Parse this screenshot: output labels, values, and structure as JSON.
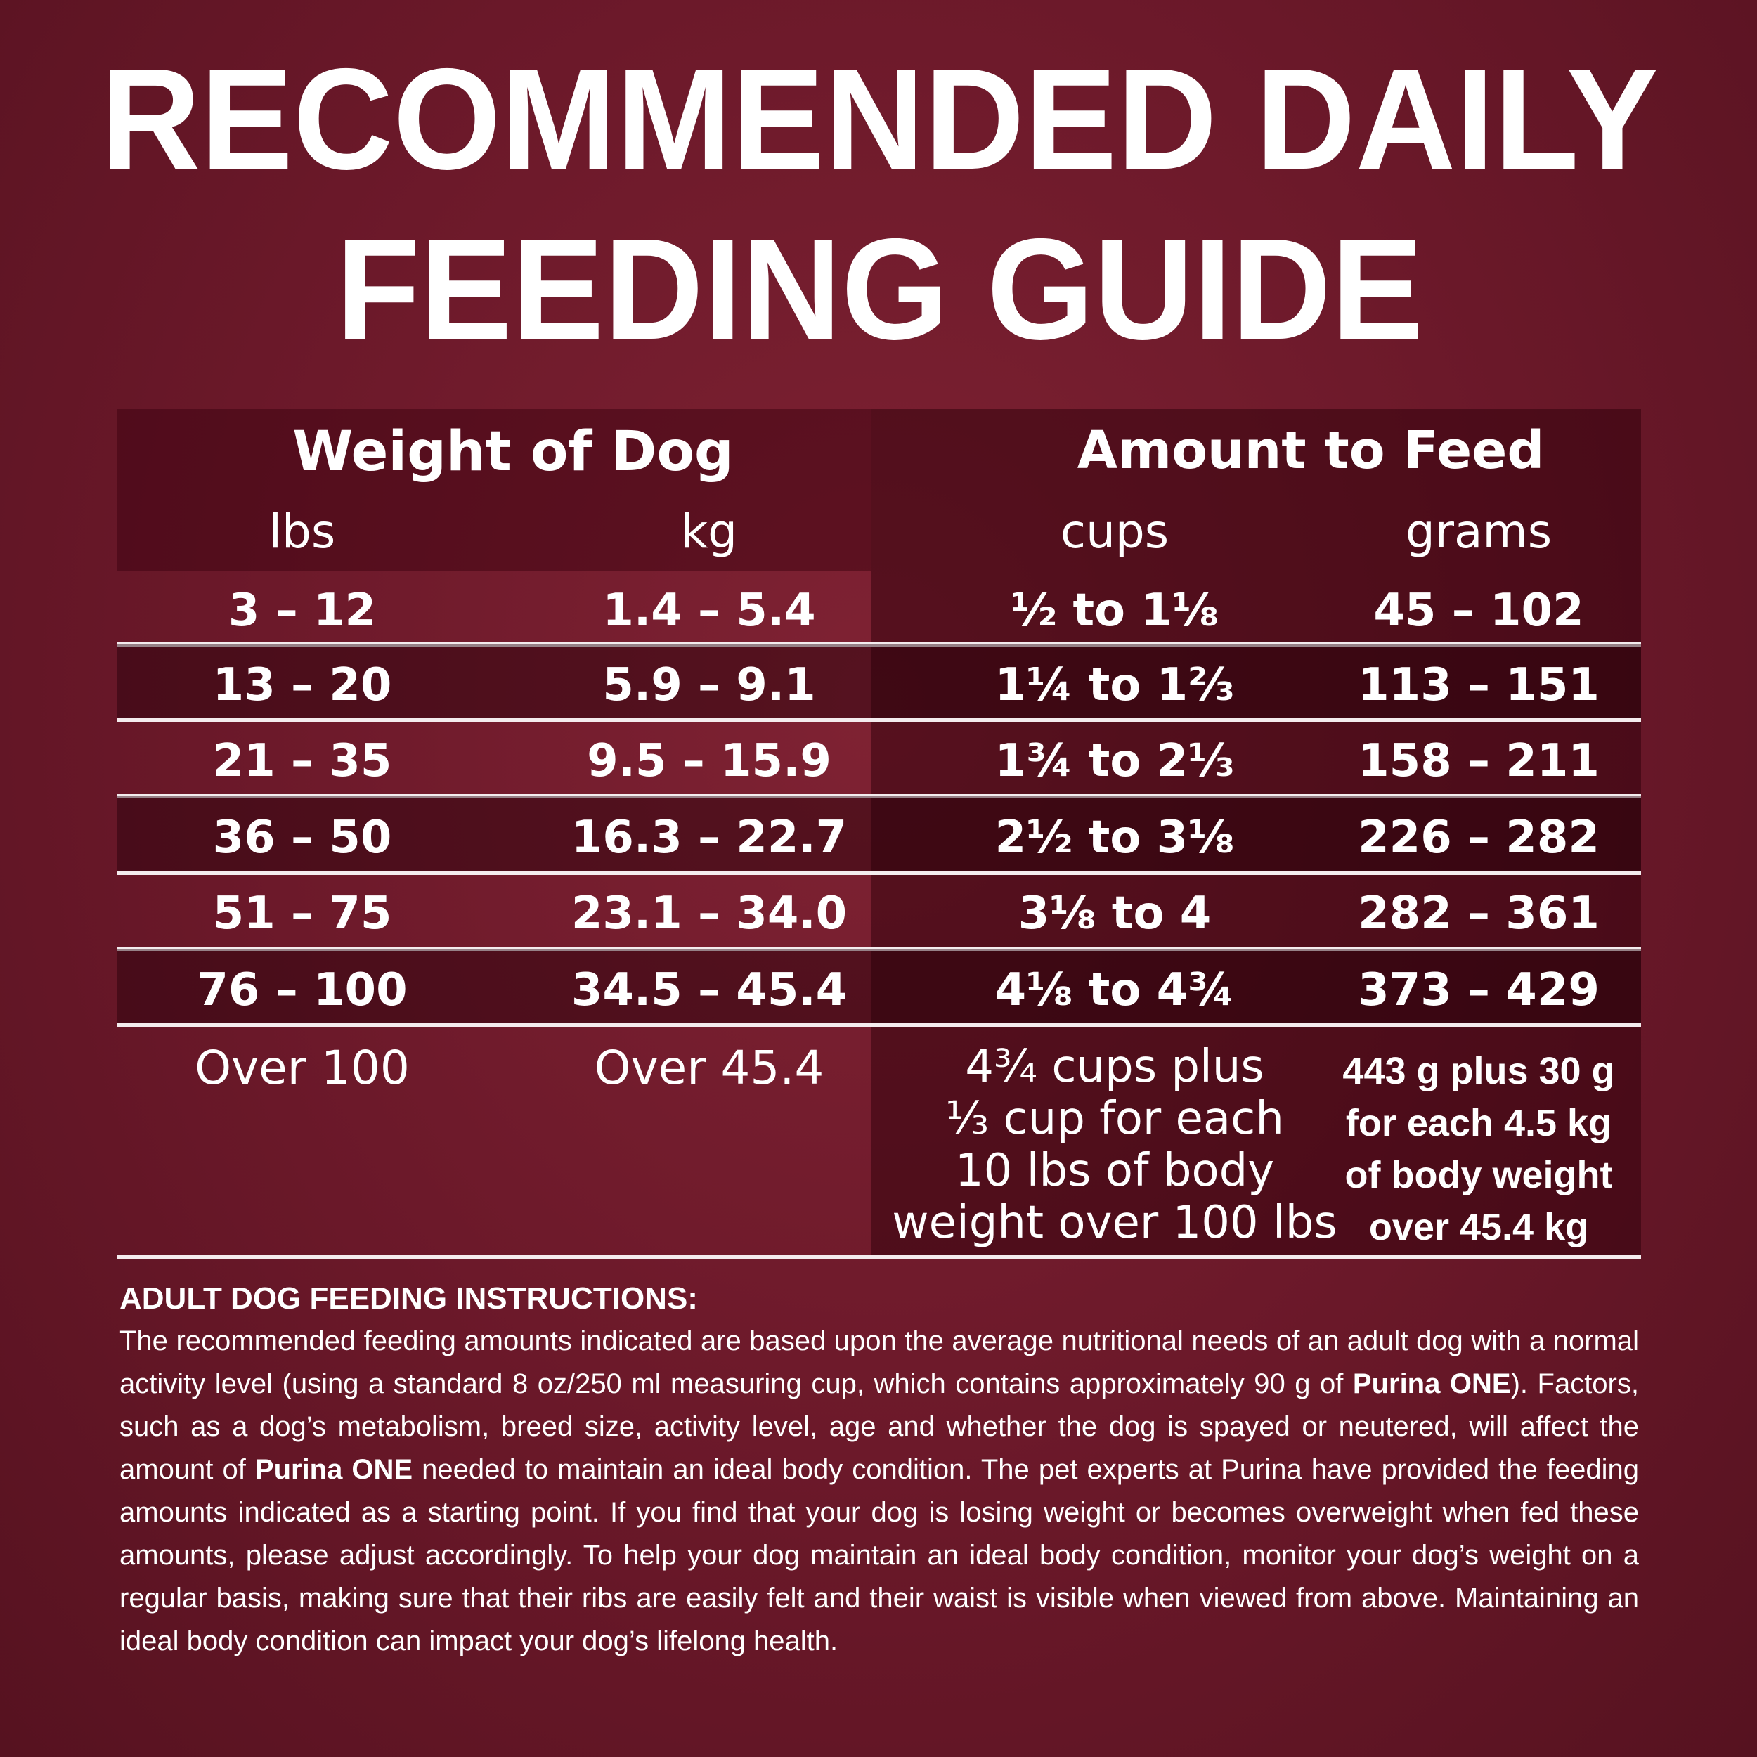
{
  "title": {
    "lines": [
      "RECOMMENDED DAILY",
      "FEEDING GUIDE"
    ]
  },
  "table": {
    "group_headers": [
      "Weight of Dog",
      "Amount to Feed"
    ],
    "columns": [
      "lbs",
      "kg",
      "cups",
      "grams"
    ],
    "rows": [
      [
        "3 – 12",
        "1.4 – 5.4",
        "½ to 1⅛",
        "45 – 102"
      ],
      [
        "13 – 20",
        "5.9 – 9.1",
        "1¼ to 1⅔",
        "113 – 151"
      ],
      [
        "21 – 35",
        "9.5 – 15.9",
        "1¾ to 2⅓",
        "158 – 211"
      ],
      [
        "36 – 50",
        "16.3 – 22.7",
        "2½ to 3⅛",
        "226 – 282"
      ],
      [
        "51 – 75",
        "23.1 – 34.0",
        "3⅛ to 4",
        "282 – 361"
      ],
      [
        "76 – 100",
        "34.5 – 45.4",
        "4⅛ to 4¾",
        "373 – 429"
      ]
    ],
    "last_row": {
      "lbs": "Over 100",
      "kg": "Over 45.4",
      "cups": [
        "4¾ cups plus",
        "⅓ cup for each",
        "10 lbs of body",
        "weight over 100 lbs"
      ],
      "grams": [
        "443 g plus 30 g",
        "for each 4.5 kg",
        "of body weight",
        "over 45.4 kg"
      ]
    }
  },
  "instructions": {
    "heading": "ADULT DOG FEEDING INSTRUCTIONS:",
    "body": [
      {
        "text": "The recommended feeding amounts indicated are based upon the average nutritional needs of an adult dog with a normal activity level (using a standard 8 oz/250 ml measuring cup, which contains approximately 90 g of ",
        "bold": false
      },
      {
        "text": "Purina ONE",
        "bold": true
      },
      {
        "text": "). Factors, such as a dog’s metabolism, breed size, activity level, age and whether the dog is spayed or neutered, will affect the amount of ",
        "bold": false
      },
      {
        "text": "Purina ONE",
        "bold": true
      },
      {
        "text": " needed to maintain an ideal body condition. The pet experts at Purina have provided the feeding amounts indicated as a starting point. If you find that your dog is losing weight or becomes overweight when fed these amounts, please adjust accordingly. To help your dog maintain an ideal body condition, monitor your dog’s weight on a regular basis, making sure that their ribs are easily felt and their waist is visible when viewed from above. Maintaining an ideal body condition can impact your dog’s lifelong health.",
        "bold": false
      }
    ]
  }
}
